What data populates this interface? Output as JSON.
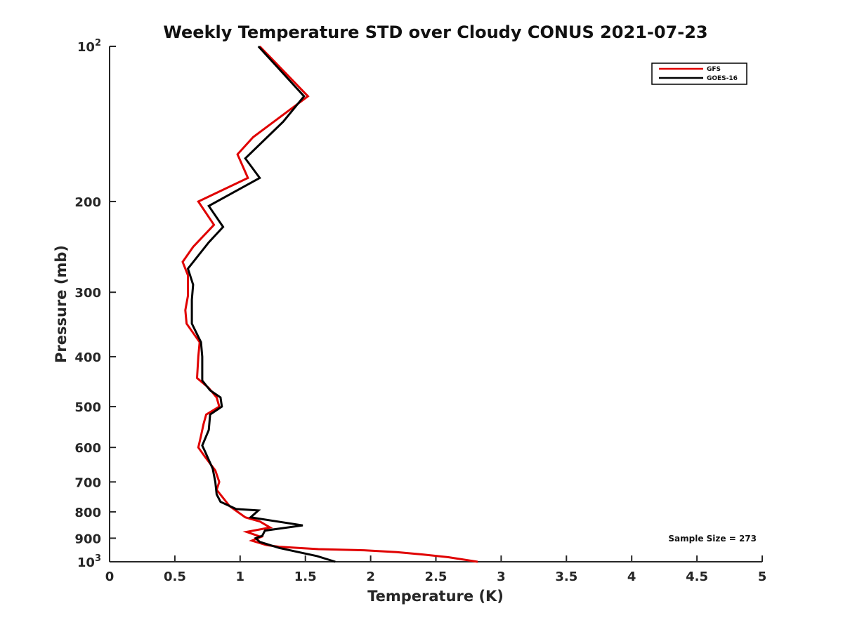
{
  "chart_data": {
    "type": "line",
    "title": "Weekly Temperature STD over Cloudy CONUS 2021-07-23",
    "xlabel": "Temperature (K)",
    "ylabel": "Pressure (mb)",
    "xlim": [
      0,
      5
    ],
    "ylim": [
      100,
      1000
    ],
    "y_scale": "log",
    "y_reversed": true,
    "x_ticks": [
      0,
      0.5,
      1,
      1.5,
      2,
      2.5,
      3,
      3.5,
      4,
      4.5,
      5
    ],
    "x_tick_labels": [
      "0",
      "0.5",
      "1",
      "1.5",
      "2",
      "2.5",
      "3",
      "3.5",
      "4",
      "4.5",
      "5"
    ],
    "y_ticks": [
      {
        "value": 100,
        "base": "10",
        "exp": "2"
      },
      {
        "value": 200,
        "label": "200"
      },
      {
        "value": 300,
        "label": "300"
      },
      {
        "value": 400,
        "label": "400"
      },
      {
        "value": 500,
        "label": "500"
      },
      {
        "value": 600,
        "label": "600"
      },
      {
        "value": 700,
        "label": "700"
      },
      {
        "value": 800,
        "label": "800"
      },
      {
        "value": 900,
        "label": "900"
      },
      {
        "value": 1000,
        "base": "10",
        "exp": "3"
      }
    ],
    "legend_placement": "top-right",
    "series": [
      {
        "name": "GFS",
        "color": "#e00000",
        "points": [
          [
            1.15,
            100
          ],
          [
            1.52,
            125
          ],
          [
            1.1,
            150
          ],
          [
            0.98,
            162
          ],
          [
            1.06,
            180
          ],
          [
            0.68,
            200
          ],
          [
            0.8,
            222
          ],
          [
            0.64,
            245
          ],
          [
            0.56,
            262
          ],
          [
            0.6,
            278
          ],
          [
            0.6,
            305
          ],
          [
            0.58,
            325
          ],
          [
            0.59,
            345
          ],
          [
            0.69,
            375
          ],
          [
            0.68,
            400
          ],
          [
            0.67,
            440
          ],
          [
            0.76,
            460
          ],
          [
            0.82,
            480
          ],
          [
            0.84,
            500
          ],
          [
            0.74,
            518
          ],
          [
            0.72,
            540
          ],
          [
            0.7,
            570
          ],
          [
            0.68,
            600
          ],
          [
            0.73,
            625
          ],
          [
            0.81,
            665
          ],
          [
            0.84,
            700
          ],
          [
            0.82,
            725
          ],
          [
            0.92,
            780
          ],
          [
            1.04,
            820
          ],
          [
            1.15,
            835
          ],
          [
            1.23,
            858
          ],
          [
            1.05,
            875
          ],
          [
            1.16,
            895
          ],
          [
            1.09,
            910
          ],
          [
            1.2,
            928
          ],
          [
            1.3,
            935
          ],
          [
            1.6,
            945
          ],
          [
            1.95,
            950
          ],
          [
            2.2,
            958
          ],
          [
            2.4,
            968
          ],
          [
            2.6,
            980
          ],
          [
            2.82,
            1000
          ]
        ]
      },
      {
        "name": "GOES-16",
        "color": "#000000",
        "points": [
          [
            1.14,
            100
          ],
          [
            1.49,
            125
          ],
          [
            1.33,
            140
          ],
          [
            1.04,
            165
          ],
          [
            1.15,
            180
          ],
          [
            0.76,
            204
          ],
          [
            0.87,
            224
          ],
          [
            0.76,
            240
          ],
          [
            0.6,
            270
          ],
          [
            0.64,
            290
          ],
          [
            0.63,
            310
          ],
          [
            0.63,
            345
          ],
          [
            0.7,
            375
          ],
          [
            0.71,
            400
          ],
          [
            0.71,
            445
          ],
          [
            0.77,
            465
          ],
          [
            0.85,
            480
          ],
          [
            0.86,
            500
          ],
          [
            0.77,
            518
          ],
          [
            0.76,
            555
          ],
          [
            0.71,
            595
          ],
          [
            0.73,
            610
          ],
          [
            0.79,
            660
          ],
          [
            0.81,
            700
          ],
          [
            0.82,
            740
          ],
          [
            0.85,
            765
          ],
          [
            0.97,
            790
          ],
          [
            1.14,
            795
          ],
          [
            1.08,
            820
          ],
          [
            1.48,
            850
          ],
          [
            1.19,
            870
          ],
          [
            1.17,
            890
          ],
          [
            1.12,
            900
          ],
          [
            1.15,
            915
          ],
          [
            1.3,
            940
          ],
          [
            1.59,
            975
          ],
          [
            1.73,
            1000
          ]
        ]
      }
    ],
    "annotation": "Sample Size = 273"
  }
}
